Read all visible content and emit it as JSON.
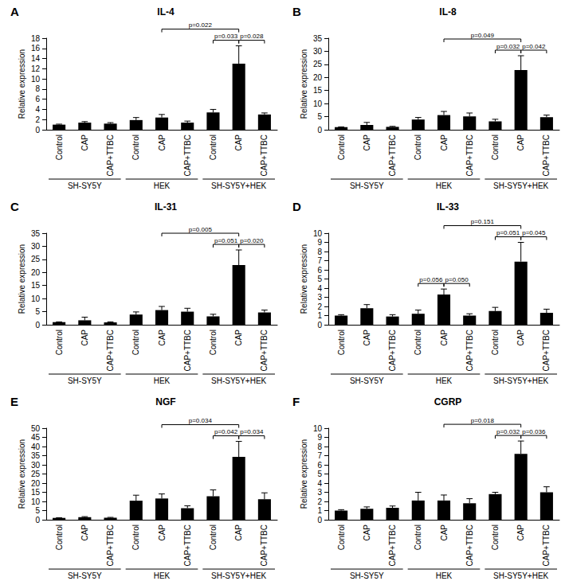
{
  "chart_data": [
    {
      "type": "bar",
      "panel": "A",
      "title": "IL-4",
      "y_label": "Relative expression",
      "color": "#000000",
      "grid": false,
      "categories": [
        "Control",
        "CAP",
        "CAP+TTBC",
        "Control",
        "CAP",
        "CAP+TTBC",
        "Control",
        "CAP",
        "CAP+TTBC"
      ],
      "values": [
        1.0,
        1.4,
        1.2,
        1.9,
        2.4,
        1.4,
        3.4,
        13.0,
        3.0
      ],
      "errors": [
        0.1,
        0.2,
        0.2,
        0.5,
        0.6,
        0.3,
        0.6,
        3.5,
        0.3
      ],
      "groups": [
        {
          "label": "SH-SY5Y",
          "start": 0,
          "end": 2
        },
        {
          "label": "HEK",
          "start": 3,
          "end": 5
        },
        {
          "label": "SH-SY5Y+HEK",
          "start": 6,
          "end": 8
        }
      ],
      "brackets": [
        {
          "from": 4,
          "to": 7,
          "label": "p=0.022"
        },
        {
          "from": 6,
          "to": 7,
          "label": "p=0.033"
        },
        {
          "from": 7,
          "to": 8,
          "label": "p=0.028"
        }
      ],
      "ylim": [
        0,
        18
      ],
      "yticks": [
        0,
        2,
        4,
        6,
        8,
        10,
        12,
        14,
        16,
        18
      ]
    },
    {
      "type": "bar",
      "panel": "B",
      "title": "IL-8",
      "y_label": "Relative expression",
      "color": "#000000",
      "grid": false,
      "categories": [
        "Control",
        "CAP",
        "CAP+TTBC",
        "Control",
        "CAP",
        "CAP+TTBC",
        "Control",
        "CAP",
        "CAP+TTBC"
      ],
      "values": [
        1.0,
        1.8,
        1.1,
        3.9,
        5.6,
        5.1,
        3.2,
        22.8,
        4.8
      ],
      "errors": [
        0.1,
        1.0,
        0.2,
        0.8,
        1.4,
        1.3,
        0.8,
        5.5,
        0.8
      ],
      "groups": [
        {
          "label": "SH-SY5Y",
          "start": 0,
          "end": 2
        },
        {
          "label": "HEK",
          "start": 3,
          "end": 5
        },
        {
          "label": "SH-SY5Y+HEK",
          "start": 6,
          "end": 8
        }
      ],
      "brackets": [
        {
          "from": 4,
          "to": 7,
          "label": "p=0.049"
        },
        {
          "from": 6,
          "to": 7,
          "label": "p=0.032"
        },
        {
          "from": 7,
          "to": 8,
          "label": "p=0.042"
        }
      ],
      "ylim": [
        0,
        35
      ],
      "yticks": [
        0,
        5,
        10,
        15,
        20,
        25,
        30,
        35
      ]
    },
    {
      "type": "bar",
      "panel": "C",
      "title": "IL-31",
      "y_label": "Relative expression",
      "color": "#000000",
      "grid": false,
      "categories": [
        "Control",
        "CAP",
        "CAP+TTBC",
        "Control",
        "CAP",
        "CAP+TTBC",
        "Control",
        "CAP",
        "CAP+TTBC"
      ],
      "values": [
        1.0,
        1.7,
        0.9,
        3.9,
        5.6,
        5.0,
        3.2,
        22.8,
        4.7
      ],
      "errors": [
        0.1,
        1.2,
        0.2,
        1.0,
        1.4,
        1.3,
        0.8,
        5.8,
        0.9
      ],
      "groups": [
        {
          "label": "SH-SY5Y",
          "start": 0,
          "end": 2
        },
        {
          "label": "HEK",
          "start": 3,
          "end": 5
        },
        {
          "label": "SH-SY5Y+HEK",
          "start": 6,
          "end": 8
        }
      ],
      "brackets": [
        {
          "from": 4,
          "to": 7,
          "label": "p=0.005"
        },
        {
          "from": 6,
          "to": 7,
          "label": "p=0.051"
        },
        {
          "from": 7,
          "to": 8,
          "label": "p=0.020"
        }
      ],
      "ylim": [
        0,
        35
      ],
      "yticks": [
        0,
        5,
        10,
        15,
        20,
        25,
        30,
        35
      ]
    },
    {
      "type": "bar",
      "panel": "D",
      "title": "IL-33",
      "y_label": "Relative expression",
      "color": "#000000",
      "grid": false,
      "categories": [
        "Control",
        "CAP",
        "CAP+TTBC",
        "Control",
        "CAP",
        "CAP+TTBC",
        "Control",
        "CAP",
        "CAP+TTBC"
      ],
      "values": [
        1.0,
        1.8,
        0.9,
        1.2,
        3.3,
        1.0,
        1.5,
        6.9,
        1.3
      ],
      "errors": [
        0.1,
        0.4,
        0.2,
        0.4,
        0.6,
        0.2,
        0.4,
        2.1,
        0.4
      ],
      "groups": [
        {
          "label": "SH-SY5Y",
          "start": 0,
          "end": 2
        },
        {
          "label": "HEK",
          "start": 3,
          "end": 5
        },
        {
          "label": "SH-SY5Y+HEK",
          "start": 6,
          "end": 8
        }
      ],
      "brackets": [
        {
          "from": 3,
          "to": 4,
          "label": "p=0.056"
        },
        {
          "from": 4,
          "to": 5,
          "label": "p=0.050"
        },
        {
          "from": 4,
          "to": 7,
          "label": "p=0.151"
        },
        {
          "from": 6,
          "to": 7,
          "label": "p=0.051"
        },
        {
          "from": 7,
          "to": 8,
          "label": "p=0.045"
        }
      ],
      "ylim": [
        0,
        10
      ],
      "yticks": [
        0,
        1,
        2,
        3,
        4,
        5,
        6,
        7,
        8,
        9,
        10
      ]
    },
    {
      "type": "bar",
      "panel": "E",
      "title": "NGF",
      "y_label": "Relative expression",
      "color": "#000000",
      "grid": false,
      "categories": [
        "Control",
        "CAP",
        "CAP+TTBC",
        "Control",
        "CAP",
        "CAP+TTBC",
        "Control",
        "CAP",
        "CAP+TTBC"
      ],
      "values": [
        1.0,
        1.4,
        1.1,
        10.4,
        11.6,
        6.3,
        12.8,
        34.3,
        11.2
      ],
      "errors": [
        0.1,
        0.3,
        0.2,
        3.0,
        2.5,
        1.3,
        3.5,
        8.5,
        3.5
      ],
      "groups": [
        {
          "label": "SH-SY5Y",
          "start": 0,
          "end": 2
        },
        {
          "label": "HEK",
          "start": 3,
          "end": 5
        },
        {
          "label": "SH-SY5Y+HEK",
          "start": 6,
          "end": 8
        }
      ],
      "brackets": [
        {
          "from": 4,
          "to": 7,
          "label": "p=0.034"
        },
        {
          "from": 6,
          "to": 7,
          "label": "p=0.042"
        },
        {
          "from": 7,
          "to": 8,
          "label": "p=0.034"
        }
      ],
      "ylim": [
        0,
        50
      ],
      "yticks": [
        0,
        5,
        10,
        15,
        20,
        25,
        30,
        35,
        40,
        45,
        50
      ]
    },
    {
      "type": "bar",
      "panel": "F",
      "title": "CGRP",
      "y_label": "Relative expression",
      "color": "#000000",
      "grid": false,
      "categories": [
        "Control",
        "CAP",
        "CAP+TTBC",
        "Control",
        "CAP",
        "CAP+TTBC",
        "Control",
        "CAP",
        "CAP+TTBC"
      ],
      "values": [
        1.0,
        1.2,
        1.3,
        2.1,
        2.1,
        1.8,
        2.8,
        7.2,
        3.0
      ],
      "errors": [
        0.1,
        0.2,
        0.2,
        0.9,
        0.6,
        0.5,
        0.2,
        1.4,
        0.6
      ],
      "groups": [
        {
          "label": "SH-SY5Y",
          "start": 0,
          "end": 2
        },
        {
          "label": "HEK",
          "start": 3,
          "end": 5
        },
        {
          "label": "SH-SY5Y+HEK",
          "start": 6,
          "end": 8
        }
      ],
      "brackets": [
        {
          "from": 4,
          "to": 7,
          "label": "p=0.018"
        },
        {
          "from": 6,
          "to": 7,
          "label": "p=0.032"
        },
        {
          "from": 7,
          "to": 8,
          "label": "p=0.036"
        }
      ],
      "ylim": [
        0,
        10
      ],
      "yticks": [
        0,
        1,
        2,
        3,
        4,
        5,
        6,
        7,
        8,
        9,
        10
      ]
    }
  ]
}
